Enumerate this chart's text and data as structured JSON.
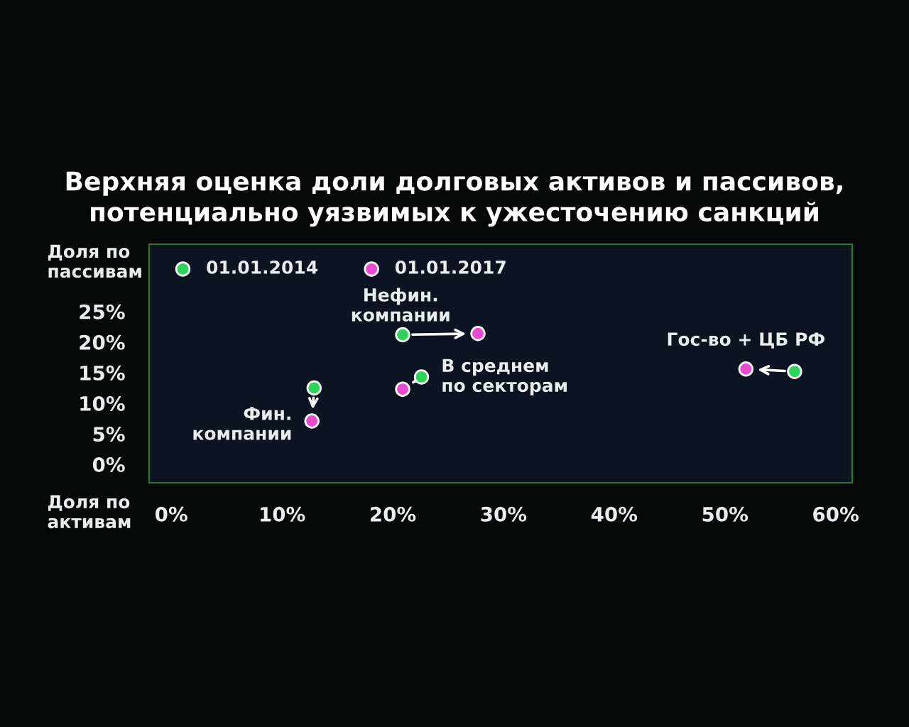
{
  "chart_data": {
    "type": "scatter",
    "title": "Верхняя оценка доли долговых активов и пассивов,\nпотенциально уязвимых к ужесточению санкций",
    "xlabel": "Доля по\nактивам",
    "ylabel": "Доля по\nпассивам",
    "series": [
      {
        "name": "01.01.2014",
        "color": "#2fd35a",
        "x": [
          12.9,
          20.9,
          22.6,
          56.3
        ],
        "values": [
          12.5,
          21.2,
          14.3,
          15.2
        ]
      },
      {
        "name": "01.01.2017",
        "color": "#e84ad0",
        "x": [
          12.7,
          27.7,
          20.9,
          51.9
        ],
        "values": [
          7.1,
          21.4,
          12.3,
          15.6
        ]
      }
    ],
    "annotations": [
      {
        "text": "Фин.\nкомпании",
        "x": 12.7,
        "y": 7.1
      },
      {
        "text": "Нефин.\nкомпании",
        "x": 20.9,
        "y": 21.2
      },
      {
        "text": "В среднем\nпо секторам",
        "x": 22.6,
        "y": 14.3
      },
      {
        "text": "Гос-во + ЦБ РФ",
        "x": 51.9,
        "y": 15.6
      }
    ],
    "xlim": [
      -2,
      61.5
    ],
    "ylim": [
      -3,
      36
    ],
    "xticks": [
      {
        "value": 0,
        "label": "0%"
      },
      {
        "value": 10,
        "label": "10%"
      },
      {
        "value": 20,
        "label": "20%"
      },
      {
        "value": 30,
        "label": "30%"
      },
      {
        "value": 40,
        "label": "40%"
      },
      {
        "value": 50,
        "label": "50%"
      },
      {
        "value": 60,
        "label": "60%"
      }
    ],
    "yticks": [
      {
        "value": 0,
        "label": "0%"
      },
      {
        "value": 5,
        "label": "5%"
      },
      {
        "value": 10,
        "label": "10%"
      },
      {
        "value": 15,
        "label": "15%"
      },
      {
        "value": 20,
        "label": "20%"
      },
      {
        "value": 25,
        "label": "25%"
      }
    ],
    "legend": "top left",
    "grid": false,
    "marker": "circle"
  }
}
